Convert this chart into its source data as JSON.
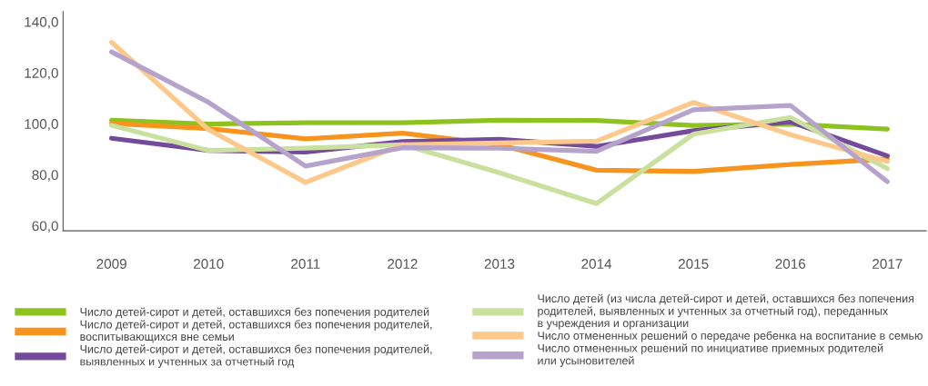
{
  "chart_data": {
    "type": "line",
    "categories": [
      "2009",
      "2010",
      "2011",
      "2012",
      "2013",
      "2014",
      "2015",
      "2016",
      "2017"
    ],
    "ylim": [
      58,
      144
    ],
    "yticks": [
      {
        "value": 60,
        "label": "60,0"
      },
      {
        "value": 80,
        "label": "80,0"
      },
      {
        "value": 100,
        "label": "100,0"
      },
      {
        "value": 120,
        "label": "120,0"
      },
      {
        "value": 140,
        "label": "140,0"
      }
    ],
    "grid": false,
    "legend": "bottom",
    "marker": "none",
    "line_style": "solid",
    "series": [
      {
        "name": "Число детей-сирот и детей, оставшихся без попечения родителей",
        "color": "#8dc21f",
        "values": [
          101.4,
          99.9,
          100.4,
          100.4,
          101.4,
          101.3,
          99.3,
          99.9,
          97.9
        ]
      },
      {
        "name": "Число детей-сирот и детей, оставшихся без попечения родителей,\nвоспитывающихся вне семьи",
        "color": "#f7941d",
        "values": [
          100.1,
          98.1,
          94.1,
          96.3,
          91.8,
          81.8,
          81.3,
          84.0,
          86.2
        ]
      },
      {
        "name": "Число детей-сирот и детей, оставшихся без попечения родителей,\nвыявленных и учтенных за отчетный год",
        "color": "#744b9a",
        "values": [
          94.3,
          89.5,
          88.9,
          93.0,
          93.9,
          91.1,
          97.3,
          100.8,
          87.4
        ]
      },
      {
        "name": "Число детей (из числа детей-сирот и детей, оставшихся без попечения\nродителей, выявленных и учтенных за отчетный год), переданных\nв учреждения и организации",
        "color": "#c9e09e",
        "values": [
          99.4,
          89.5,
          90.4,
          91.8,
          80.8,
          68.7,
          95.9,
          102.5,
          82.4
        ]
      },
      {
        "name": "Число отмененных решений о передаче ребенка на воспитание в семью",
        "color": "#fcc98b",
        "values": [
          132.0,
          97.7,
          77.0,
          91.8,
          92.5,
          93.2,
          108.4,
          95.7,
          85.2
        ]
      },
      {
        "name": "Число отмененных решений по инициативе приемных родителей\nили усыновителей",
        "color": "#b5a3cc",
        "values": [
          128.2,
          108.4,
          83.4,
          90.6,
          90.4,
          89.2,
          105.5,
          107.2,
          77.3
        ]
      }
    ]
  }
}
